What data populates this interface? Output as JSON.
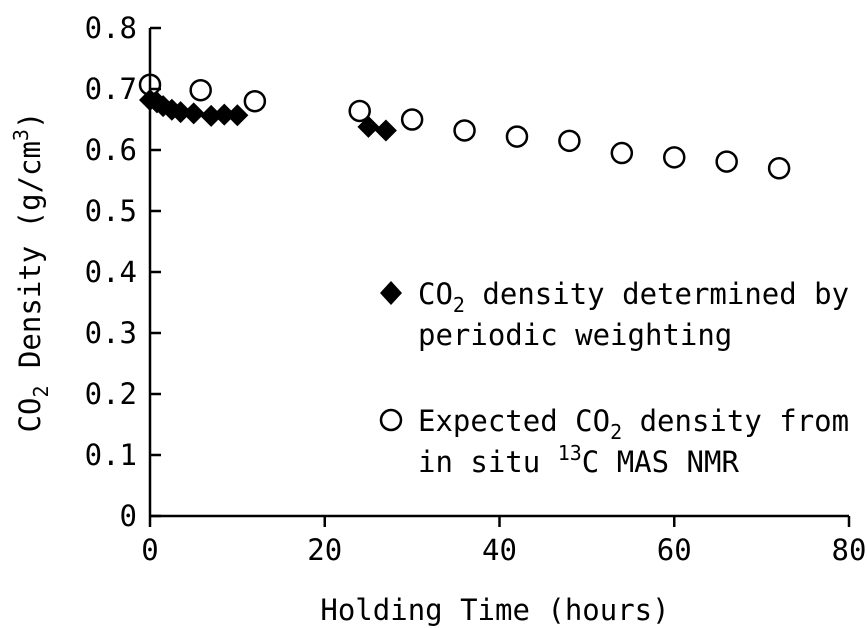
{
  "chart_data": {
    "type": "scatter",
    "xlabel": "Holding Time (hours)",
    "ylabel": {
      "pre": "CO",
      "sub": "2",
      "mid": " Density (g/cm",
      "sup": "3",
      "post": ")"
    },
    "xlim": [
      0,
      80
    ],
    "ylim": [
      0,
      0.8
    ],
    "xticks": [
      0,
      20,
      40,
      60,
      80
    ],
    "yticks": [
      0,
      0.1,
      0.2,
      0.3,
      0.4,
      0.5,
      0.6,
      0.7,
      0.8
    ],
    "xtick_labels": [
      "0",
      "20",
      "40",
      "60",
      "80"
    ],
    "ytick_labels": [
      "0",
      "0.1",
      "0.2",
      "0.3",
      "0.4",
      "0.5",
      "0.6",
      "0.7",
      "0.8"
    ],
    "grid": false,
    "legend_position": "center-right",
    "series": [
      {
        "marker": "filled-diamond",
        "legend_line1": {
          "pre": "CO",
          "sub": "2",
          "post": " density determined by"
        },
        "legend_line2": "periodic weighting",
        "x": [
          0,
          0.8,
          1.5,
          2.5,
          3.5,
          5,
          7,
          8.5,
          10,
          25,
          27
        ],
        "y": [
          0.682,
          0.678,
          0.672,
          0.666,
          0.662,
          0.66,
          0.656,
          0.658,
          0.657,
          0.638,
          0.632
        ]
      },
      {
        "marker": "open-circle",
        "legend_line1": {
          "pre": "Expected CO",
          "sub": "2",
          "post": " density from"
        },
        "legend_line2": {
          "pre": "in situ ",
          "sup": "13",
          "post": "C MAS NMR"
        },
        "x": [
          0,
          5.8,
          12,
          24,
          30,
          36,
          42,
          48,
          54,
          60,
          66,
          72
        ],
        "y": [
          0.707,
          0.698,
          0.68,
          0.664,
          0.65,
          0.632,
          0.622,
          0.615,
          0.595,
          0.588,
          0.581,
          0.57
        ]
      }
    ]
  }
}
